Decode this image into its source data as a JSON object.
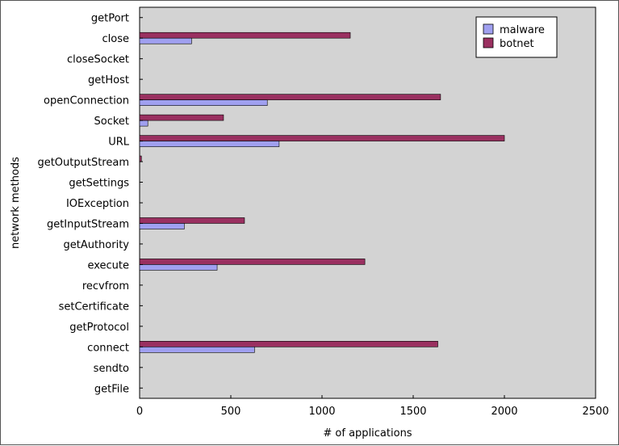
{
  "chart_data": {
    "type": "bar",
    "orientation": "horizontal",
    "categories": [
      "getPort",
      "close",
      "closeSocket",
      "getHost",
      "openConnection",
      "Socket",
      "URL",
      "getOutputStream",
      "getSettings",
      "IOException",
      "getInputStream",
      "getAuthority",
      "execute",
      "recvfrom",
      "setCertificate",
      "getProtocol",
      "connect",
      "sendto",
      "getFile"
    ],
    "series": [
      {
        "name": "malware",
        "color": "#a0a0f0",
        "values": [
          0,
          285,
          0,
          0,
          700,
          45,
          765,
          0,
          0,
          0,
          245,
          0,
          425,
          0,
          0,
          0,
          630,
          0,
          0
        ]
      },
      {
        "name": "botnet",
        "color": "#9a3060",
        "values": [
          0,
          1155,
          0,
          0,
          1650,
          460,
          2000,
          10,
          0,
          0,
          575,
          0,
          1235,
          0,
          0,
          0,
          1635,
          0,
          0
        ]
      }
    ],
    "xlabel": "# of applications",
    "ylabel": "network methods",
    "xlim": [
      0,
      2500
    ],
    "xticks": [
      0,
      500,
      1000,
      1500,
      2000,
      2500
    ],
    "grid": false,
    "plot_background": "#d3d3d3",
    "legend_position": "top-right"
  }
}
